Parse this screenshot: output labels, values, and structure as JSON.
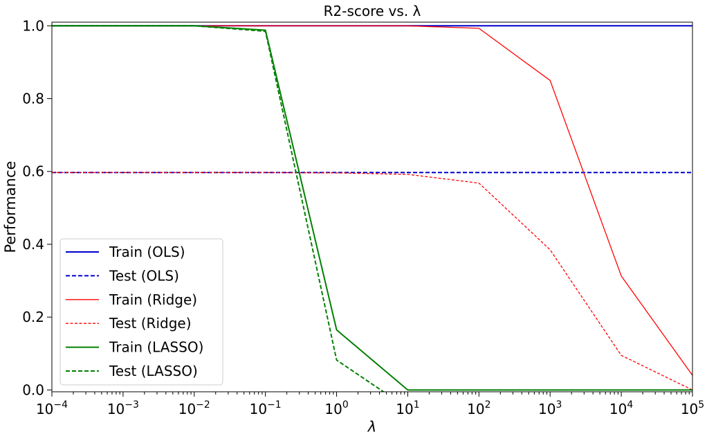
{
  "chart_data": {
    "type": "line",
    "title": "R2-score vs. λ",
    "xlabel": "λ",
    "ylabel": "Performance",
    "x_scale": "log",
    "xlim": [
      0.0001,
      100000
    ],
    "ylim": [
      -0.005,
      1.01
    ],
    "x_ticks": [
      {
        "base": "10",
        "exp": "−4"
      },
      {
        "base": "10",
        "exp": "−3"
      },
      {
        "base": "10",
        "exp": "−2"
      },
      {
        "base": "10",
        "exp": "−1"
      },
      {
        "base": "10",
        "exp": "0"
      },
      {
        "base": "10",
        "exp": "1"
      },
      {
        "base": "10",
        "exp": "2"
      },
      {
        "base": "10",
        "exp": "3"
      },
      {
        "base": "10",
        "exp": "4"
      },
      {
        "base": "10",
        "exp": "5"
      }
    ],
    "y_ticks": [
      "0.0",
      "0.2",
      "0.4",
      "0.6",
      "0.8",
      "1.0"
    ],
    "grid": false,
    "legend_position": "lower-left",
    "x": [
      0.0001,
      0.001,
      0.01,
      0.1,
      1,
      10,
      100,
      1000,
      10000,
      100000
    ],
    "series": [
      {
        "name": "Train (OLS)",
        "color": "#0000cc",
        "style": "solid",
        "width": "medium",
        "values": [
          1.0,
          1.0,
          1.0,
          1.0,
          1.0,
          1.0,
          1.0,
          1.0,
          1.0,
          1.0
        ]
      },
      {
        "name": "Test (OLS)",
        "color": "#0000cc",
        "style": "dashed",
        "width": "medium",
        "values": [
          0.597,
          0.597,
          0.597,
          0.597,
          0.597,
          0.597,
          0.597,
          0.597,
          0.597,
          0.597
        ]
      },
      {
        "name": "Train (Ridge)",
        "color": "#ff0000",
        "style": "solid",
        "width": "thin",
        "values": [
          1.0,
          1.0,
          1.0,
          1.0,
          1.0,
          1.0,
          0.993,
          0.85,
          0.313,
          0.04
        ]
      },
      {
        "name": "Test (Ridge)",
        "color": "#ff0000",
        "style": "dashed",
        "width": "thin",
        "values": [
          0.597,
          0.597,
          0.597,
          0.597,
          0.596,
          0.592,
          0.568,
          0.385,
          0.095,
          0.0
        ]
      },
      {
        "name": "Train (LASSO)",
        "color": "#008000",
        "style": "solid",
        "width": "medium",
        "values": [
          1.0,
          1.0,
          1.0,
          0.988,
          0.165,
          0.0,
          0.0,
          0.0,
          0.0,
          0.0
        ]
      },
      {
        "name": "Test (LASSO)",
        "color": "#008000",
        "style": "dashed",
        "width": "medium",
        "values": [
          1.0,
          1.0,
          1.0,
          0.985,
          0.082,
          -0.05,
          null,
          null,
          null,
          null
        ]
      }
    ]
  }
}
